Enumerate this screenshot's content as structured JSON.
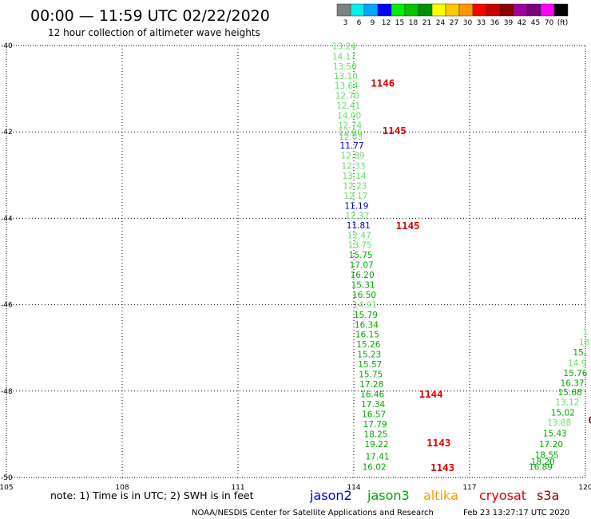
{
  "header": {
    "title": "00:00 — 11:59 UTC 02/22/2020",
    "subtitle": "12 hour collection of altimeter wave heights"
  },
  "colorbar": {
    "colors": [
      "#808080",
      "#00eeee",
      "#00a6ff",
      "#0000ff",
      "#00ee00",
      "#00c400",
      "#009100",
      "#ffff00",
      "#ffc800",
      "#ff9600",
      "#ff0000",
      "#c80000",
      "#8b0000",
      "#a000a0",
      "#7a007a",
      "#ff00ff",
      "#000000"
    ],
    "labels": [
      "3",
      "6",
      "9",
      "12",
      "15",
      "18",
      "21",
      "24",
      "27",
      "30",
      "33",
      "36",
      "39",
      "42",
      "45",
      "70",
      "(ft)"
    ]
  },
  "chart_data": {
    "type": "scatter",
    "x_axis": {
      "ticks": [
        "105",
        "108",
        "111",
        "114",
        "117",
        "120"
      ],
      "xlim": [
        105,
        120
      ]
    },
    "y_axis": {
      "ticks": [
        "-40",
        "-42",
        "-44",
        "-46",
        "-48",
        "-50"
      ],
      "ylim": [
        -50,
        -40
      ]
    },
    "grid": "dotted",
    "points": [
      {
        "lon": 113.75,
        "lat": -40.08,
        "value": "13.24",
        "color": "#66dd66"
      },
      {
        "lon": 113.75,
        "lat": -40.32,
        "value": "14.17",
        "color": "#66dd66"
      },
      {
        "lon": 113.77,
        "lat": -40.55,
        "value": "13.50",
        "color": "#66dd66"
      },
      {
        "lon": 113.79,
        "lat": -40.78,
        "value": "13.10",
        "color": "#66dd66"
      },
      {
        "lon": 113.81,
        "lat": -41.0,
        "value": "13.64",
        "color": "#66dd66"
      },
      {
        "lon": 113.83,
        "lat": -41.23,
        "value": "12.70",
        "color": "#66dd66"
      },
      {
        "lon": 113.86,
        "lat": -41.46,
        "value": "12.41",
        "color": "#66dd66"
      },
      {
        "lon": 113.88,
        "lat": -41.69,
        "value": "14.00",
        "color": "#66dd66"
      },
      {
        "lon": 113.9,
        "lat": -41.91,
        "value": "12.74",
        "color": "#66dd66"
      },
      {
        "lon": 113.91,
        "lat": -42.08,
        "value": "12.06",
        "color": "#66dd66"
      },
      {
        "lon": 113.92,
        "lat": -42.18,
        "value": "12.03",
        "color": "#66dd66"
      },
      {
        "lon": 113.95,
        "lat": -42.38,
        "value": "11.77",
        "color": "#0000dd"
      },
      {
        "lon": 113.97,
        "lat": -42.62,
        "value": "12.89",
        "color": "#66dd66"
      },
      {
        "lon": 113.99,
        "lat": -42.86,
        "value": "12.33",
        "color": "#66dd66"
      },
      {
        "lon": 114.01,
        "lat": -43.09,
        "value": "13.14",
        "color": "#66dd66"
      },
      {
        "lon": 114.03,
        "lat": -43.32,
        "value": "12.23",
        "color": "#66dd66"
      },
      {
        "lon": 114.05,
        "lat": -43.55,
        "value": "12.17",
        "color": "#66dd66"
      },
      {
        "lon": 114.07,
        "lat": -43.78,
        "value": "11.19",
        "color": "#0000dd"
      },
      {
        "lon": 114.09,
        "lat": -44.01,
        "value": "12.37",
        "color": "#66dd66"
      },
      {
        "lon": 114.12,
        "lat": -44.23,
        "value": "11.81",
        "color": "#0000dd"
      },
      {
        "lon": 114.14,
        "lat": -44.46,
        "value": "12.47",
        "color": "#66dd66"
      },
      {
        "lon": 114.16,
        "lat": -44.69,
        "value": "13.75",
        "color": "#66dd66"
      },
      {
        "lon": 114.18,
        "lat": -44.92,
        "value": "15.75",
        "color": "#00aa00"
      },
      {
        "lon": 114.2,
        "lat": -45.15,
        "value": "17.07",
        "color": "#00aa00"
      },
      {
        "lon": 114.22,
        "lat": -45.38,
        "value": "16.20",
        "color": "#00aa00"
      },
      {
        "lon": 114.24,
        "lat": -45.61,
        "value": "15.31",
        "color": "#00aa00"
      },
      {
        "lon": 114.27,
        "lat": -45.84,
        "value": "16.50",
        "color": "#00aa00"
      },
      {
        "lon": 114.29,
        "lat": -46.07,
        "value": "14.91",
        "color": "#66dd66"
      },
      {
        "lon": 114.31,
        "lat": -46.3,
        "value": "15.79",
        "color": "#00aa00"
      },
      {
        "lon": 114.33,
        "lat": -46.53,
        "value": "16.34",
        "color": "#00aa00"
      },
      {
        "lon": 114.35,
        "lat": -46.76,
        "value": "16.15",
        "color": "#00aa00"
      },
      {
        "lon": 114.38,
        "lat": -46.99,
        "value": "15.26",
        "color": "#00aa00"
      },
      {
        "lon": 114.4,
        "lat": -47.22,
        "value": "15.23",
        "color": "#00aa00"
      },
      {
        "lon": 114.42,
        "lat": -47.45,
        "value": "15.57",
        "color": "#00aa00"
      },
      {
        "lon": 114.44,
        "lat": -47.68,
        "value": "15.75",
        "color": "#00aa00"
      },
      {
        "lon": 114.46,
        "lat": -47.91,
        "value": "17.28",
        "color": "#00aa00"
      },
      {
        "lon": 114.48,
        "lat": -48.14,
        "value": "16.46",
        "color": "#00aa00"
      },
      {
        "lon": 114.5,
        "lat": -48.37,
        "value": "17.34",
        "color": "#00aa00"
      },
      {
        "lon": 114.52,
        "lat": -48.6,
        "value": "16.57",
        "color": "#00aa00"
      },
      {
        "lon": 114.55,
        "lat": -48.84,
        "value": "17.79",
        "color": "#00aa00"
      },
      {
        "lon": 114.57,
        "lat": -49.07,
        "value": "18.25",
        "color": "#00aa00"
      },
      {
        "lon": 114.59,
        "lat": -49.3,
        "value": "19.22",
        "color": "#00aa00"
      },
      {
        "lon": 114.61,
        "lat": -49.58,
        "value": "17.41",
        "color": "#00aa00"
      },
      {
        "lon": 114.53,
        "lat": -49.82,
        "value": "16.02",
        "color": "#00aa00"
      },
      {
        "lon": 120.0,
        "lat": -46.7,
        "value": "1",
        "color": "#66dd66"
      },
      {
        "lon": 119.97,
        "lat": -46.94,
        "value": "13",
        "color": "#66dd66"
      },
      {
        "lon": 119.85,
        "lat": -47.17,
        "value": "15.",
        "color": "#00aa00"
      },
      {
        "lon": 119.79,
        "lat": -47.42,
        "value": "14.9",
        "color": "#66dd66"
      },
      {
        "lon": 119.74,
        "lat": -47.65,
        "value": "15.76",
        "color": "#00aa00"
      },
      {
        "lon": 119.66,
        "lat": -47.88,
        "value": "16.37",
        "color": "#00aa00"
      },
      {
        "lon": 119.6,
        "lat": -48.1,
        "value": "15.68",
        "color": "#00aa00"
      },
      {
        "lon": 119.53,
        "lat": -48.33,
        "value": "13.12",
        "color": "#66dd66"
      },
      {
        "lon": 119.42,
        "lat": -48.57,
        "value": "15.02",
        "color": "#00aa00"
      },
      {
        "lon": 119.32,
        "lat": -48.8,
        "value": "13.88",
        "color": "#66dd66"
      },
      {
        "lon": 119.21,
        "lat": -49.05,
        "value": "15.43",
        "color": "#00aa00"
      },
      {
        "lon": 119.11,
        "lat": -49.3,
        "value": "17.20",
        "color": "#00aa00"
      },
      {
        "lon": 119.0,
        "lat": -49.55,
        "value": "18.55",
        "color": "#00aa00"
      },
      {
        "lon": 118.9,
        "lat": -49.7,
        "value": "18.20",
        "color": "#00aa00"
      },
      {
        "lon": 118.84,
        "lat": -49.82,
        "value": "16.89",
        "color": "#00aa00"
      }
    ],
    "time_labels": [
      {
        "lon": 114.75,
        "lat": -40.95,
        "value": "1146",
        "color": "#dd0000"
      },
      {
        "lon": 115.05,
        "lat": -42.05,
        "value": "1145",
        "color": "#dd0000"
      },
      {
        "lon": 115.4,
        "lat": -44.25,
        "value": "1145",
        "color": "#dd0000"
      },
      {
        "lon": 116.0,
        "lat": -48.15,
        "value": "1144",
        "color": "#dd0000"
      },
      {
        "lon": 116.2,
        "lat": -49.28,
        "value": "1143",
        "color": "#dd0000"
      },
      {
        "lon": 116.3,
        "lat": -49.85,
        "value": "1143",
        "color": "#dd0000"
      },
      {
        "lon": 120.15,
        "lat": -48.75,
        "value": "0",
        "color": "#8b0000"
      }
    ]
  },
  "legend": {
    "note": "note:  1) Time is in UTC;  2) SWH is in feet",
    "satellites": [
      {
        "name": "jason2",
        "color": "#0000dd"
      },
      {
        "name": "jason3",
        "color": "#00aa00"
      },
      {
        "name": "altika",
        "color": "#ff9900"
      },
      {
        "name": "cryosat",
        "color": "#dd0000"
      },
      {
        "name": "s3a",
        "color": "#8b0000"
      }
    ]
  },
  "footer": {
    "credit": "NOAA/NESDIS Center for Satellite Applications and Research",
    "timestamp": "Feb 23 13:27:17 UTC 2020"
  }
}
